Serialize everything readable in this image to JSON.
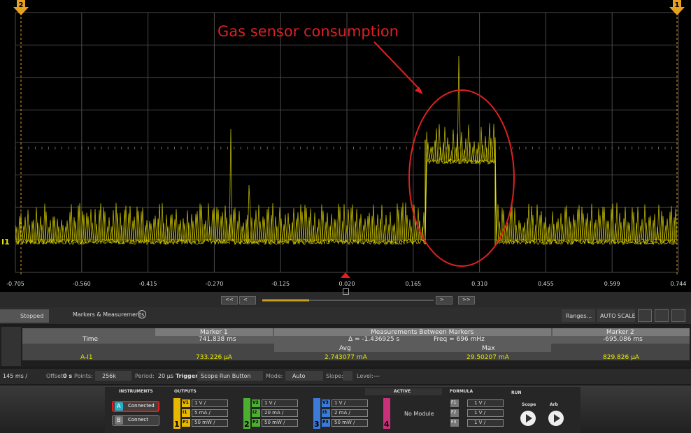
{
  "scope": {
    "annotation": "Gas sensor consumption",
    "x_labels": [
      "-0.705",
      "-0.560",
      "-0.415",
      "-0.270",
      "-0.125",
      "0.020",
      "0.165",
      "0.310",
      "0.455",
      "0.599",
      "0.744"
    ],
    "marker_left": "2",
    "marker_right": "1",
    "channel_label": "I1"
  },
  "toolbar": {
    "status": "Stopped",
    "markers_button": "Markers & Measurements",
    "ranges_button": "Ranges...",
    "autoscale_button": "AUTO SCALE",
    "nav": [
      "<<",
      "<",
      ">",
      ">>"
    ]
  },
  "measurements": {
    "time_label": "Time",
    "channel": "A-I1",
    "marker1": {
      "title": "Marker 1",
      "time": "741.838 ms",
      "value": "733.226 µA"
    },
    "between": {
      "title": "Measurements Between Markers",
      "delta": "Δ = -1.436925 s",
      "freq": "Freq = 696 mHz",
      "avg_label": "Avg",
      "avg": "2.743077 mA",
      "max_label": "Max",
      "max": "29.50207 mA"
    },
    "marker2": {
      "title": "Marker 2",
      "time": "-695.086 ms",
      "value": "829.826 µA"
    }
  },
  "settings": {
    "timebase": "145 ms /",
    "offset_label": "Offset:",
    "offset": "0 s",
    "points_label": "Points:",
    "points": "256k",
    "period_label": "Period:",
    "period": "20 µs",
    "trigger_label": "Trigger",
    "trigger": "Scope Run Button",
    "mode_label": "Mode:",
    "mode": "Auto",
    "slope_label": "Slope:",
    "level_label": "Level:",
    "level": "---"
  },
  "instruments": {
    "title": "INSTRUMENTS",
    "items": [
      {
        "id": "A",
        "status": "Connected"
      },
      {
        "id": "B",
        "status": "Connect"
      }
    ]
  },
  "outputs": {
    "title": "OUTPUTS",
    "channels": [
      {
        "number": "1",
        "rows": [
          {
            "id": "V1",
            "scale": "1 V /"
          },
          {
            "id": "I1",
            "scale": "5 mA /"
          },
          {
            "id": "P1",
            "scale": "50 mW /"
          }
        ]
      },
      {
        "number": "2",
        "rows": [
          {
            "id": "V2",
            "scale": "1 V /"
          },
          {
            "id": "I2",
            "scale": "20 mA /"
          },
          {
            "id": "P2",
            "scale": "50 mW /"
          }
        ]
      },
      {
        "number": "3",
        "rows": [
          {
            "id": "V3",
            "scale": "1 V /"
          },
          {
            "id": "I3",
            "scale": "2 mA /"
          },
          {
            "id": "P3",
            "scale": "50 mW /"
          }
        ]
      }
    ]
  },
  "active": {
    "title": "ACTIVE",
    "module": "No Module",
    "number": "4"
  },
  "formula": {
    "title": "FORMULA",
    "rows": [
      {
        "id": "F1",
        "scale": "1 V /"
      },
      {
        "id": "F2",
        "scale": "1 V /"
      },
      {
        "id": "F3",
        "scale": "1 V /"
      }
    ]
  },
  "run": {
    "title": "RUN",
    "buttons": [
      "Scope",
      "Arb"
    ]
  }
}
